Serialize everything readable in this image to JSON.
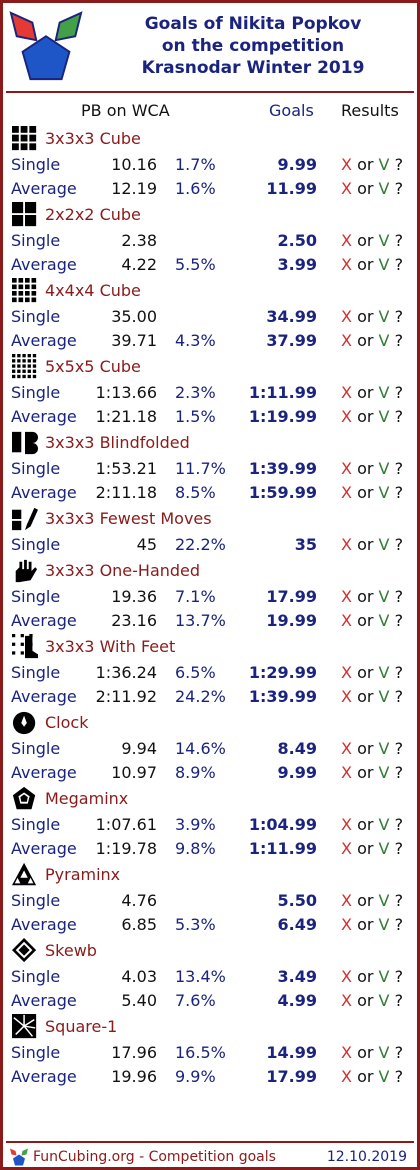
{
  "header": {
    "title_line1": "Goals of Nikita Popkov",
    "title_line2": "on the competition",
    "title_line3": "Krasnodar Winter 2019"
  },
  "columns": {
    "pb": "PB on WCA",
    "goals": "Goals",
    "results": "Results"
  },
  "result_template": {
    "x": "X",
    "or": "or",
    "v": "V",
    "q": "?"
  },
  "events": [
    {
      "name": "3x3x3 Cube",
      "icon": "cube-3x3-icon",
      "rows": [
        {
          "type": "Single",
          "pb": "10.16",
          "pct": "1.7%",
          "goal": "9.99"
        },
        {
          "type": "Average",
          "pb": "12.19",
          "pct": "1.6%",
          "goal": "11.99"
        }
      ]
    },
    {
      "name": "2x2x2 Cube",
      "icon": "cube-2x2-icon",
      "rows": [
        {
          "type": "Single",
          "pb": "2.38",
          "pct": "",
          "goal": "2.50"
        },
        {
          "type": "Average",
          "pb": "4.22",
          "pct": "5.5%",
          "goal": "3.99"
        }
      ]
    },
    {
      "name": "4x4x4 Cube",
      "icon": "cube-4x4-icon",
      "rows": [
        {
          "type": "Single",
          "pb": "35.00",
          "pct": "",
          "goal": "34.99"
        },
        {
          "type": "Average",
          "pb": "39.71",
          "pct": "4.3%",
          "goal": "37.99"
        }
      ]
    },
    {
      "name": "5x5x5 Cube",
      "icon": "cube-5x5-icon",
      "rows": [
        {
          "type": "Single",
          "pb": "1:13.66",
          "pct": "2.3%",
          "goal": "1:11.99"
        },
        {
          "type": "Average",
          "pb": "1:21.18",
          "pct": "1.5%",
          "goal": "1:19.99"
        }
      ]
    },
    {
      "name": "3x3x3 Blindfolded",
      "icon": "blindfolded-icon",
      "rows": [
        {
          "type": "Single",
          "pb": "1:53.21",
          "pct": "11.7%",
          "goal": "1:39.99"
        },
        {
          "type": "Average",
          "pb": "2:11.18",
          "pct": "8.5%",
          "goal": "1:59.99"
        }
      ]
    },
    {
      "name": "3x3x3 Fewest Moves",
      "icon": "fewest-moves-icon",
      "rows": [
        {
          "type": "Single",
          "pb": "45",
          "pct": "22.2%",
          "goal": "35"
        }
      ]
    },
    {
      "name": "3x3x3 One-Handed",
      "icon": "one-handed-icon",
      "rows": [
        {
          "type": "Single",
          "pb": "19.36",
          "pct": "7.1%",
          "goal": "17.99"
        },
        {
          "type": "Average",
          "pb": "23.16",
          "pct": "13.7%",
          "goal": "19.99"
        }
      ]
    },
    {
      "name": "3x3x3 With Feet",
      "icon": "with-feet-icon",
      "rows": [
        {
          "type": "Single",
          "pb": "1:36.24",
          "pct": "6.5%",
          "goal": "1:29.99"
        },
        {
          "type": "Average",
          "pb": "2:11.92",
          "pct": "24.2%",
          "goal": "1:39.99"
        }
      ]
    },
    {
      "name": "Clock",
      "icon": "clock-icon",
      "rows": [
        {
          "type": "Single",
          "pb": "9.94",
          "pct": "14.6%",
          "goal": "8.49"
        },
        {
          "type": "Average",
          "pb": "10.97",
          "pct": "8.9%",
          "goal": "9.99"
        }
      ]
    },
    {
      "name": "Megaminx",
      "icon": "megaminx-icon",
      "rows": [
        {
          "type": "Single",
          "pb": "1:07.61",
          "pct": "3.9%",
          "goal": "1:04.99"
        },
        {
          "type": "Average",
          "pb": "1:19.78",
          "pct": "9.8%",
          "goal": "1:11.99"
        }
      ]
    },
    {
      "name": "Pyraminx",
      "icon": "pyraminx-icon",
      "rows": [
        {
          "type": "Single",
          "pb": "4.76",
          "pct": "",
          "goal": "5.50"
        },
        {
          "type": "Average",
          "pb": "6.85",
          "pct": "5.3%",
          "goal": "6.49"
        }
      ]
    },
    {
      "name": "Skewb",
      "icon": "skewb-icon",
      "rows": [
        {
          "type": "Single",
          "pb": "4.03",
          "pct": "13.4%",
          "goal": "3.49"
        },
        {
          "type": "Average",
          "pb": "5.40",
          "pct": "7.6%",
          "goal": "4.99"
        }
      ]
    },
    {
      "name": "Square-1",
      "icon": "square-1-icon",
      "rows": [
        {
          "type": "Single",
          "pb": "17.96",
          "pct": "16.5%",
          "goal": "14.99"
        },
        {
          "type": "Average",
          "pb": "19.96",
          "pct": "9.9%",
          "goal": "17.99"
        }
      ]
    }
  ],
  "footer": {
    "site": "FunCubing.org - Competition goals",
    "date": "12.10.2019"
  },
  "colors": {
    "frame": "#8b1a1a",
    "title": "#1a237e",
    "event_name": "#8b1a1a",
    "x": "#d32f2f",
    "v": "#2e7d32",
    "logo_red": "#e53935",
    "logo_green": "#43a047",
    "logo_blue": "#1e56c8"
  }
}
